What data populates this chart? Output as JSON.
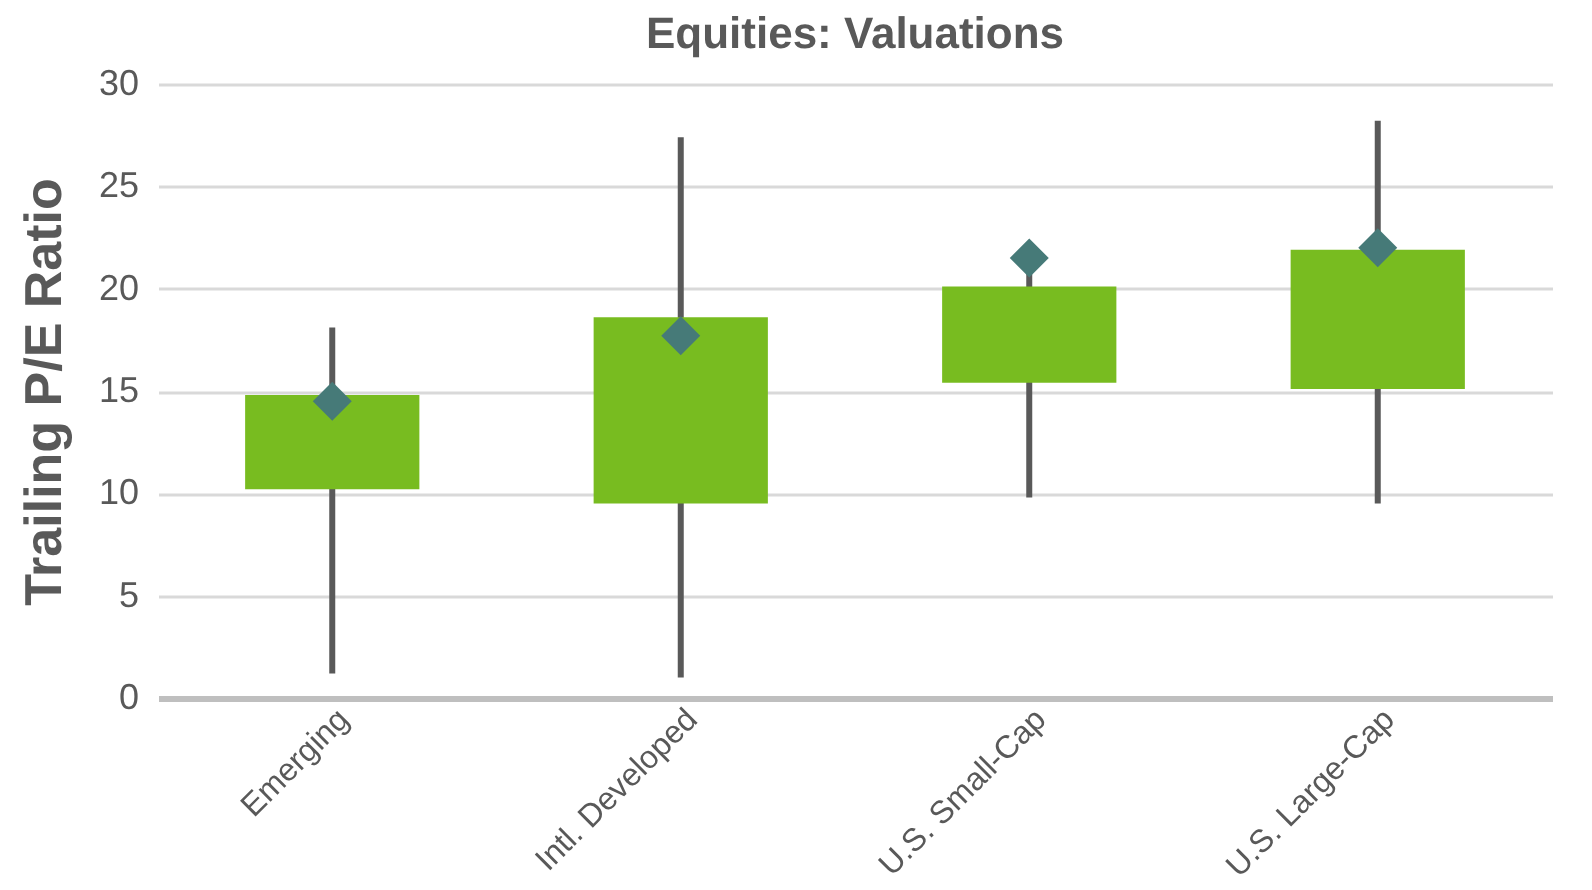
{
  "chart_data": {
    "type": "bar",
    "title": "Equities: Valuations",
    "ylabel": "Trailing P/E Ratio",
    "categories": [
      "Emerging",
      "Intl. Developed",
      "U.S. Small-Cap",
      "U.S. Large-Cap"
    ],
    "series": [
      {
        "color": "#78bc20",
        "base": [
          10.2,
          9.5,
          15.4,
          15.1
        ],
        "values": [
          4.6,
          9.1,
          4.7,
          6.8
        ],
        "errors": [
          [
            1.2,
            18.1
          ],
          [
            1.0,
            27.4
          ],
          [
            9.8,
            21.0
          ],
          [
            9.5,
            28.2
          ]
        ]
      },
      {
        "type": "scatter",
        "color": "#467a78",
        "marker": "diamond",
        "x": [
          "Emerging",
          "Intl. Developed",
          "U.S. Small-Cap",
          "U.S. Large-Cap"
        ],
        "values": [
          14.5,
          17.7,
          21.5,
          22.0
        ]
      }
    ],
    "ylim": [
      0,
      30
    ],
    "yticks": [
      0,
      5,
      10,
      15,
      20,
      25,
      30
    ],
    "grid": "y"
  }
}
